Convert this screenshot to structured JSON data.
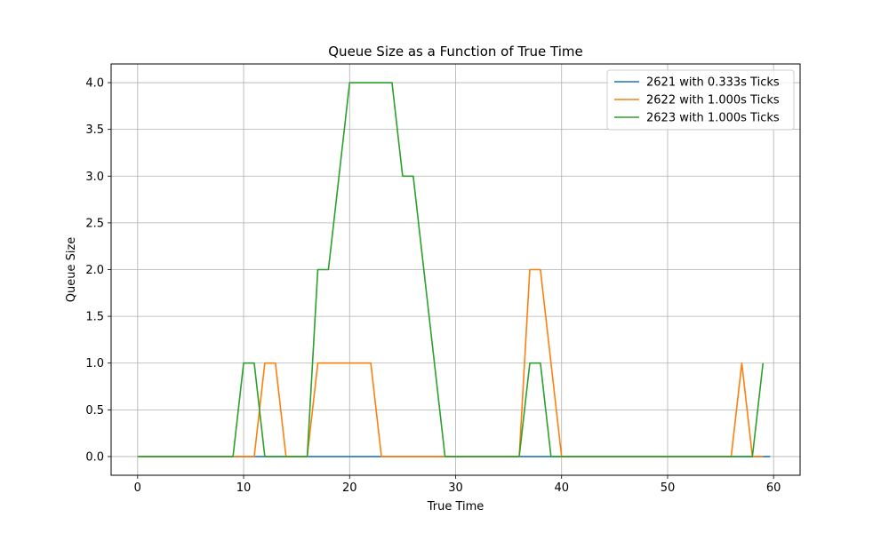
{
  "chart_data": {
    "type": "line",
    "title": "Queue Size as a Function of True Time",
    "xlabel": "True Time",
    "ylabel": "Queue Size",
    "xlim": [
      -2.5,
      62.5
    ],
    "ylim": [
      -0.2,
      4.2
    ],
    "xticks": [
      0,
      10,
      20,
      30,
      40,
      50,
      60
    ],
    "xtick_labels": [
      "0",
      "10",
      "20",
      "30",
      "40",
      "50",
      "60"
    ],
    "yticks": [
      0.0,
      0.5,
      1.0,
      1.5,
      2.0,
      2.5,
      3.0,
      3.5,
      4.0
    ],
    "ytick_labels": [
      "0.0",
      "0.5",
      "1.0",
      "1.5",
      "2.0",
      "2.5",
      "3.0",
      "3.5",
      "4.0"
    ],
    "grid": true,
    "legend_position": "top-right",
    "series": [
      {
        "name": "2621 with 0.333s Ticks",
        "color": "#1f77b4",
        "x": [
          0.33,
          59.67
        ],
        "y": [
          0,
          0
        ]
      },
      {
        "name": "2622 with 1.000s Ticks",
        "color": "#ff7f0e",
        "x": [
          0,
          11,
          12,
          13,
          14,
          16,
          17,
          22,
          23,
          36,
          37,
          38,
          40,
          56,
          57,
          58,
          59
        ],
        "y": [
          0,
          0,
          1,
          1,
          0,
          0,
          1,
          1,
          0,
          0,
          2,
          2,
          0,
          0,
          1,
          0,
          0
        ]
      },
      {
        "name": "2623 with 1.000s Ticks",
        "color": "#2ca02c",
        "x": [
          0,
          9,
          10,
          11,
          12,
          16,
          17,
          18,
          20,
          24,
          25,
          26,
          29,
          36,
          37,
          38,
          39,
          58,
          59
        ],
        "y": [
          0,
          0,
          1,
          1,
          0,
          0,
          2,
          2,
          4,
          4,
          3,
          3,
          0,
          0,
          1,
          1,
          0,
          0,
          1
        ]
      }
    ]
  }
}
